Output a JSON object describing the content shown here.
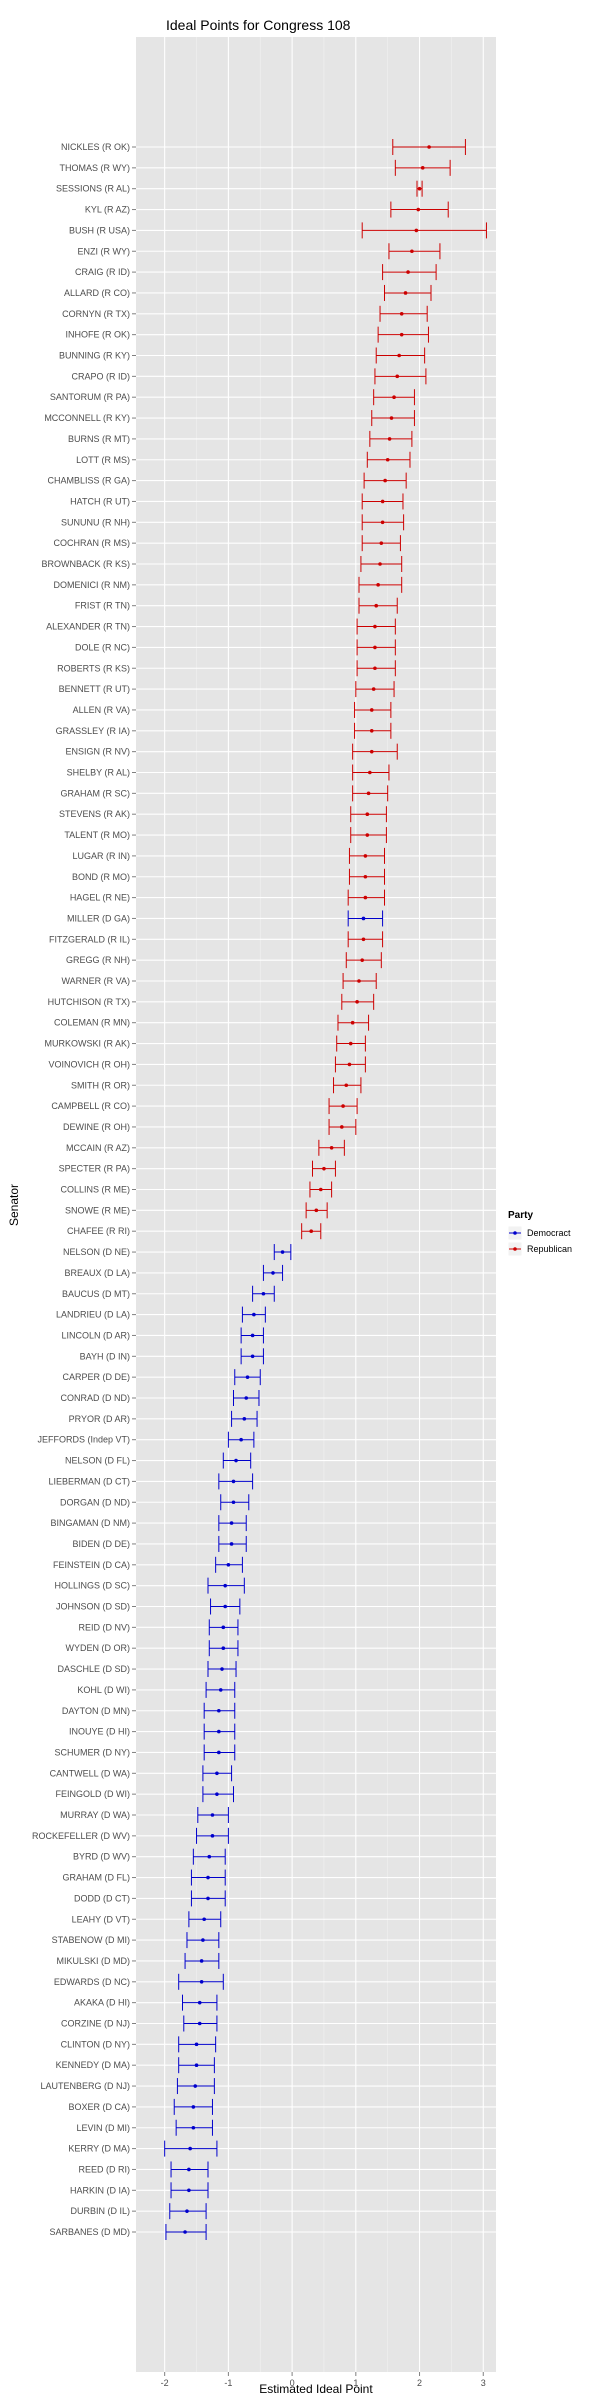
{
  "chart_data": {
    "type": "errorbar",
    "title": "Ideal Points for Congress 108",
    "xlabel": "Estimated Ideal Point",
    "ylabel": "Senator",
    "xlim": [
      -2.45,
      3.2
    ],
    "xticks": [
      -2,
      -1,
      0,
      1,
      2,
      3
    ],
    "grid": true,
    "legend": {
      "title": "Party",
      "position": "right",
      "entries": [
        {
          "name": "Democract",
          "color": "#0000cc"
        },
        {
          "name": "Republican",
          "color": "#cc0000"
        }
      ]
    },
    "points": [
      {
        "label": "NICKLES (R OK)",
        "party": "Republican",
        "est": 2.15,
        "lo": 1.58,
        "hi": 2.72
      },
      {
        "label": "THOMAS (R WY)",
        "party": "Republican",
        "est": 2.05,
        "lo": 1.62,
        "hi": 2.48
      },
      {
        "label": "SESSIONS (R AL)",
        "party": "Republican",
        "est": 2.0,
        "lo": 1.96,
        "hi": 2.04
      },
      {
        "label": "KYL (R AZ)",
        "party": "Republican",
        "est": 1.98,
        "lo": 1.55,
        "hi": 2.45
      },
      {
        "label": "BUSH (R USA)",
        "party": "Republican",
        "est": 1.95,
        "lo": 1.1,
        "hi": 3.05
      },
      {
        "label": "ENZI (R WY)",
        "party": "Republican",
        "est": 1.88,
        "lo": 1.52,
        "hi": 2.32
      },
      {
        "label": "CRAIG (R ID)",
        "party": "Republican",
        "est": 1.82,
        "lo": 1.42,
        "hi": 2.26
      },
      {
        "label": "ALLARD (R CO)",
        "party": "Republican",
        "est": 1.78,
        "lo": 1.45,
        "hi": 2.18
      },
      {
        "label": "CORNYN (R TX)",
        "party": "Republican",
        "est": 1.72,
        "lo": 1.38,
        "hi": 2.12
      },
      {
        "label": "INHOFE (R OK)",
        "party": "Republican",
        "est": 1.72,
        "lo": 1.35,
        "hi": 2.14
      },
      {
        "label": "BUNNING (R KY)",
        "party": "Republican",
        "est": 1.68,
        "lo": 1.32,
        "hi": 2.08
      },
      {
        "label": "CRAPO (R ID)",
        "party": "Republican",
        "est": 1.65,
        "lo": 1.3,
        "hi": 2.1
      },
      {
        "label": "SANTORUM (R PA)",
        "party": "Republican",
        "est": 1.6,
        "lo": 1.28,
        "hi": 1.92
      },
      {
        "label": "MCCONNELL (R KY)",
        "party": "Republican",
        "est": 1.56,
        "lo": 1.25,
        "hi": 1.92
      },
      {
        "label": "BURNS (R MT)",
        "party": "Republican",
        "est": 1.53,
        "lo": 1.22,
        "hi": 1.88
      },
      {
        "label": "LOTT (R MS)",
        "party": "Republican",
        "est": 1.5,
        "lo": 1.18,
        "hi": 1.85
      },
      {
        "label": "CHAMBLISS (R GA)",
        "party": "Republican",
        "est": 1.46,
        "lo": 1.13,
        "hi": 1.79
      },
      {
        "label": "HATCH (R UT)",
        "party": "Republican",
        "est": 1.42,
        "lo": 1.1,
        "hi": 1.74
      },
      {
        "label": "SUNUNU (R NH)",
        "party": "Republican",
        "est": 1.42,
        "lo": 1.1,
        "hi": 1.75
      },
      {
        "label": "COCHRAN (R MS)",
        "party": "Republican",
        "est": 1.4,
        "lo": 1.1,
        "hi": 1.7
      },
      {
        "label": "BROWNBACK (R KS)",
        "party": "Republican",
        "est": 1.38,
        "lo": 1.08,
        "hi": 1.72
      },
      {
        "label": "DOMENICI (R NM)",
        "party": "Republican",
        "est": 1.35,
        "lo": 1.05,
        "hi": 1.72
      },
      {
        "label": "FRIST (R TN)",
        "party": "Republican",
        "est": 1.32,
        "lo": 1.05,
        "hi": 1.65
      },
      {
        "label": "ALEXANDER (R TN)",
        "party": "Republican",
        "est": 1.3,
        "lo": 1.02,
        "hi": 1.62
      },
      {
        "label": "DOLE (R NC)",
        "party": "Republican",
        "est": 1.3,
        "lo": 1.02,
        "hi": 1.62
      },
      {
        "label": "ROBERTS (R KS)",
        "party": "Republican",
        "est": 1.3,
        "lo": 1.02,
        "hi": 1.62
      },
      {
        "label": "BENNETT (R UT)",
        "party": "Republican",
        "est": 1.28,
        "lo": 1.0,
        "hi": 1.6
      },
      {
        "label": "ALLEN (R VA)",
        "party": "Republican",
        "est": 1.25,
        "lo": 0.98,
        "hi": 1.55
      },
      {
        "label": "GRASSLEY (R IA)",
        "party": "Republican",
        "est": 1.25,
        "lo": 0.98,
        "hi": 1.55
      },
      {
        "label": "ENSIGN (R NV)",
        "party": "Republican",
        "est": 1.25,
        "lo": 0.95,
        "hi": 1.65
      },
      {
        "label": "SHELBY (R AL)",
        "party": "Republican",
        "est": 1.22,
        "lo": 0.95,
        "hi": 1.52
      },
      {
        "label": "GRAHAM (R SC)",
        "party": "Republican",
        "est": 1.2,
        "lo": 0.95,
        "hi": 1.5
      },
      {
        "label": "STEVENS (R AK)",
        "party": "Republican",
        "est": 1.18,
        "lo": 0.92,
        "hi": 1.48
      },
      {
        "label": "TALENT (R MO)",
        "party": "Republican",
        "est": 1.18,
        "lo": 0.92,
        "hi": 1.48
      },
      {
        "label": "LUGAR (R IN)",
        "party": "Republican",
        "est": 1.15,
        "lo": 0.9,
        "hi": 1.45
      },
      {
        "label": "BOND (R MO)",
        "party": "Republican",
        "est": 1.15,
        "lo": 0.9,
        "hi": 1.45
      },
      {
        "label": "HAGEL (R NE)",
        "party": "Republican",
        "est": 1.15,
        "lo": 0.88,
        "hi": 1.45
      },
      {
        "label": "MILLER (D GA)",
        "party": "Democract",
        "est": 1.12,
        "lo": 0.88,
        "hi": 1.42
      },
      {
        "label": "FITZGERALD (R IL)",
        "party": "Republican",
        "est": 1.12,
        "lo": 0.88,
        "hi": 1.42
      },
      {
        "label": "GREGG (R NH)",
        "party": "Republican",
        "est": 1.1,
        "lo": 0.85,
        "hi": 1.4
      },
      {
        "label": "WARNER (R VA)",
        "party": "Republican",
        "est": 1.05,
        "lo": 0.8,
        "hi": 1.32
      },
      {
        "label": "HUTCHISON (R TX)",
        "party": "Republican",
        "est": 1.02,
        "lo": 0.78,
        "hi": 1.28
      },
      {
        "label": "COLEMAN (R MN)",
        "party": "Republican",
        "est": 0.95,
        "lo": 0.72,
        "hi": 1.2
      },
      {
        "label": "MURKOWSKI (R AK)",
        "party": "Republican",
        "est": 0.92,
        "lo": 0.7,
        "hi": 1.15
      },
      {
        "label": "VOINOVICH (R OH)",
        "party": "Republican",
        "est": 0.9,
        "lo": 0.68,
        "hi": 1.15
      },
      {
        "label": "SMITH (R OR)",
        "party": "Republican",
        "est": 0.85,
        "lo": 0.65,
        "hi": 1.08
      },
      {
        "label": "CAMPBELL (R CO)",
        "party": "Republican",
        "est": 0.8,
        "lo": 0.58,
        "hi": 1.02
      },
      {
        "label": "DEWINE (R OH)",
        "party": "Republican",
        "est": 0.78,
        "lo": 0.58,
        "hi": 1.0
      },
      {
        "label": "MCCAIN (R AZ)",
        "party": "Republican",
        "est": 0.62,
        "lo": 0.42,
        "hi": 0.82
      },
      {
        "label": "SPECTER (R PA)",
        "party": "Republican",
        "est": 0.5,
        "lo": 0.32,
        "hi": 0.68
      },
      {
        "label": "COLLINS (R ME)",
        "party": "Republican",
        "est": 0.45,
        "lo": 0.28,
        "hi": 0.62
      },
      {
        "label": "SNOWE (R ME)",
        "party": "Republican",
        "est": 0.38,
        "lo": 0.22,
        "hi": 0.55
      },
      {
        "label": "CHAFEE (R RI)",
        "party": "Republican",
        "est": 0.3,
        "lo": 0.15,
        "hi": 0.45
      },
      {
        "label": "NELSON (D NE)",
        "party": "Democract",
        "est": -0.15,
        "lo": -0.28,
        "hi": -0.02
      },
      {
        "label": "BREAUX (D LA)",
        "party": "Democract",
        "est": -0.3,
        "lo": -0.45,
        "hi": -0.15
      },
      {
        "label": "BAUCUS (D MT)",
        "party": "Democract",
        "est": -0.45,
        "lo": -0.62,
        "hi": -0.28
      },
      {
        "label": "LANDRIEU (D LA)",
        "party": "Democract",
        "est": -0.6,
        "lo": -0.78,
        "hi": -0.42
      },
      {
        "label": "LINCOLN (D AR)",
        "party": "Democract",
        "est": -0.62,
        "lo": -0.8,
        "hi": -0.45
      },
      {
        "label": "BAYH (D IN)",
        "party": "Democract",
        "est": -0.62,
        "lo": -0.8,
        "hi": -0.45
      },
      {
        "label": "CARPER (D DE)",
        "party": "Democract",
        "est": -0.7,
        "lo": -0.9,
        "hi": -0.5
      },
      {
        "label": "CONRAD (D ND)",
        "party": "Democract",
        "est": -0.72,
        "lo": -0.92,
        "hi": -0.52
      },
      {
        "label": "PRYOR (D AR)",
        "party": "Democract",
        "est": -0.75,
        "lo": -0.95,
        "hi": -0.55
      },
      {
        "label": "JEFFORDS (Indep VT)",
        "party": "Democract",
        "est": -0.8,
        "lo": -1.0,
        "hi": -0.6
      },
      {
        "label": "NELSON (D FL)",
        "party": "Democract",
        "est": -0.88,
        "lo": -1.08,
        "hi": -0.65
      },
      {
        "label": "LIEBERMAN (D CT)",
        "party": "Democract",
        "est": -0.92,
        "lo": -1.15,
        "hi": -0.62
      },
      {
        "label": "DORGAN (D ND)",
        "party": "Democract",
        "est": -0.92,
        "lo": -1.12,
        "hi": -0.68
      },
      {
        "label": "BINGAMAN (D NM)",
        "party": "Democract",
        "est": -0.95,
        "lo": -1.15,
        "hi": -0.72
      },
      {
        "label": "BIDEN (D DE)",
        "party": "Democract",
        "est": -0.95,
        "lo": -1.15,
        "hi": -0.72
      },
      {
        "label": "FEINSTEIN (D CA)",
        "party": "Democract",
        "est": -1.0,
        "lo": -1.2,
        "hi": -0.78
      },
      {
        "label": "HOLLINGS (D SC)",
        "party": "Democract",
        "est": -1.05,
        "lo": -1.32,
        "hi": -0.75
      },
      {
        "label": "JOHNSON (D SD)",
        "party": "Democract",
        "est": -1.05,
        "lo": -1.28,
        "hi": -0.82
      },
      {
        "label": "REID (D NV)",
        "party": "Democract",
        "est": -1.08,
        "lo": -1.3,
        "hi": -0.85
      },
      {
        "label": "WYDEN (D OR)",
        "party": "Democract",
        "est": -1.08,
        "lo": -1.3,
        "hi": -0.85
      },
      {
        "label": "DASCHLE (D SD)",
        "party": "Democract",
        "est": -1.1,
        "lo": -1.32,
        "hi": -0.88
      },
      {
        "label": "KOHL (D WI)",
        "party": "Democract",
        "est": -1.12,
        "lo": -1.35,
        "hi": -0.9
      },
      {
        "label": "DAYTON (D MN)",
        "party": "Democract",
        "est": -1.15,
        "lo": -1.38,
        "hi": -0.9
      },
      {
        "label": "INOUYE (D HI)",
        "party": "Democract",
        "est": -1.15,
        "lo": -1.38,
        "hi": -0.9
      },
      {
        "label": "SCHUMER (D NY)",
        "party": "Democract",
        "est": -1.15,
        "lo": -1.38,
        "hi": -0.9
      },
      {
        "label": "CANTWELL (D WA)",
        "party": "Democract",
        "est": -1.18,
        "lo": -1.4,
        "hi": -0.95
      },
      {
        "label": "FEINGOLD (D WI)",
        "party": "Democract",
        "est": -1.18,
        "lo": -1.4,
        "hi": -0.92
      },
      {
        "label": "MURRAY (D WA)",
        "party": "Democract",
        "est": -1.25,
        "lo": -1.48,
        "hi": -1.0
      },
      {
        "label": "ROCKEFELLER (D WV)",
        "party": "Democract",
        "est": -1.25,
        "lo": -1.5,
        "hi": -1.0
      },
      {
        "label": "BYRD (D WV)",
        "party": "Democract",
        "est": -1.3,
        "lo": -1.55,
        "hi": -1.05
      },
      {
        "label": "GRAHAM (D FL)",
        "party": "Democract",
        "est": -1.32,
        "lo": -1.58,
        "hi": -1.05
      },
      {
        "label": "DODD (D CT)",
        "party": "Democract",
        "est": -1.32,
        "lo": -1.58,
        "hi": -1.05
      },
      {
        "label": "LEAHY (D VT)",
        "party": "Democract",
        "est": -1.38,
        "lo": -1.62,
        "hi": -1.12
      },
      {
        "label": "STABENOW (D MI)",
        "party": "Democract",
        "est": -1.4,
        "lo": -1.65,
        "hi": -1.15
      },
      {
        "label": "MIKULSKI (D MD)",
        "party": "Democract",
        "est": -1.42,
        "lo": -1.68,
        "hi": -1.15
      },
      {
        "label": "EDWARDS (D NC)",
        "party": "Democract",
        "est": -1.42,
        "lo": -1.78,
        "hi": -1.08
      },
      {
        "label": "AKAKA (D HI)",
        "party": "Democract",
        "est": -1.45,
        "lo": -1.72,
        "hi": -1.18
      },
      {
        "label": "CORZINE (D NJ)",
        "party": "Democract",
        "est": -1.45,
        "lo": -1.7,
        "hi": -1.18
      },
      {
        "label": "CLINTON (D NY)",
        "party": "Democract",
        "est": -1.5,
        "lo": -1.78,
        "hi": -1.2
      },
      {
        "label": "KENNEDY (D MA)",
        "party": "Democract",
        "est": -1.5,
        "lo": -1.78,
        "hi": -1.22
      },
      {
        "label": "LAUTENBERG (D NJ)",
        "party": "Democract",
        "est": -1.52,
        "lo": -1.8,
        "hi": -1.22
      },
      {
        "label": "BOXER (D CA)",
        "party": "Democract",
        "est": -1.55,
        "lo": -1.85,
        "hi": -1.25
      },
      {
        "label": "LEVIN (D MI)",
        "party": "Democract",
        "est": -1.55,
        "lo": -1.82,
        "hi": -1.25
      },
      {
        "label": "KERRY (D MA)",
        "party": "Democract",
        "est": -1.6,
        "lo": -2.0,
        "hi": -1.18
      },
      {
        "label": "REED (D RI)",
        "party": "Democract",
        "est": -1.62,
        "lo": -1.9,
        "hi": -1.32
      },
      {
        "label": "HARKIN (D IA)",
        "party": "Democract",
        "est": -1.62,
        "lo": -1.9,
        "hi": -1.32
      },
      {
        "label": "DURBIN (D IL)",
        "party": "Democract",
        "est": -1.65,
        "lo": -1.92,
        "hi": -1.35
      },
      {
        "label": "SARBANES (D MD)",
        "party": "Democract",
        "est": -1.68,
        "lo": -1.98,
        "hi": -1.35
      }
    ]
  }
}
